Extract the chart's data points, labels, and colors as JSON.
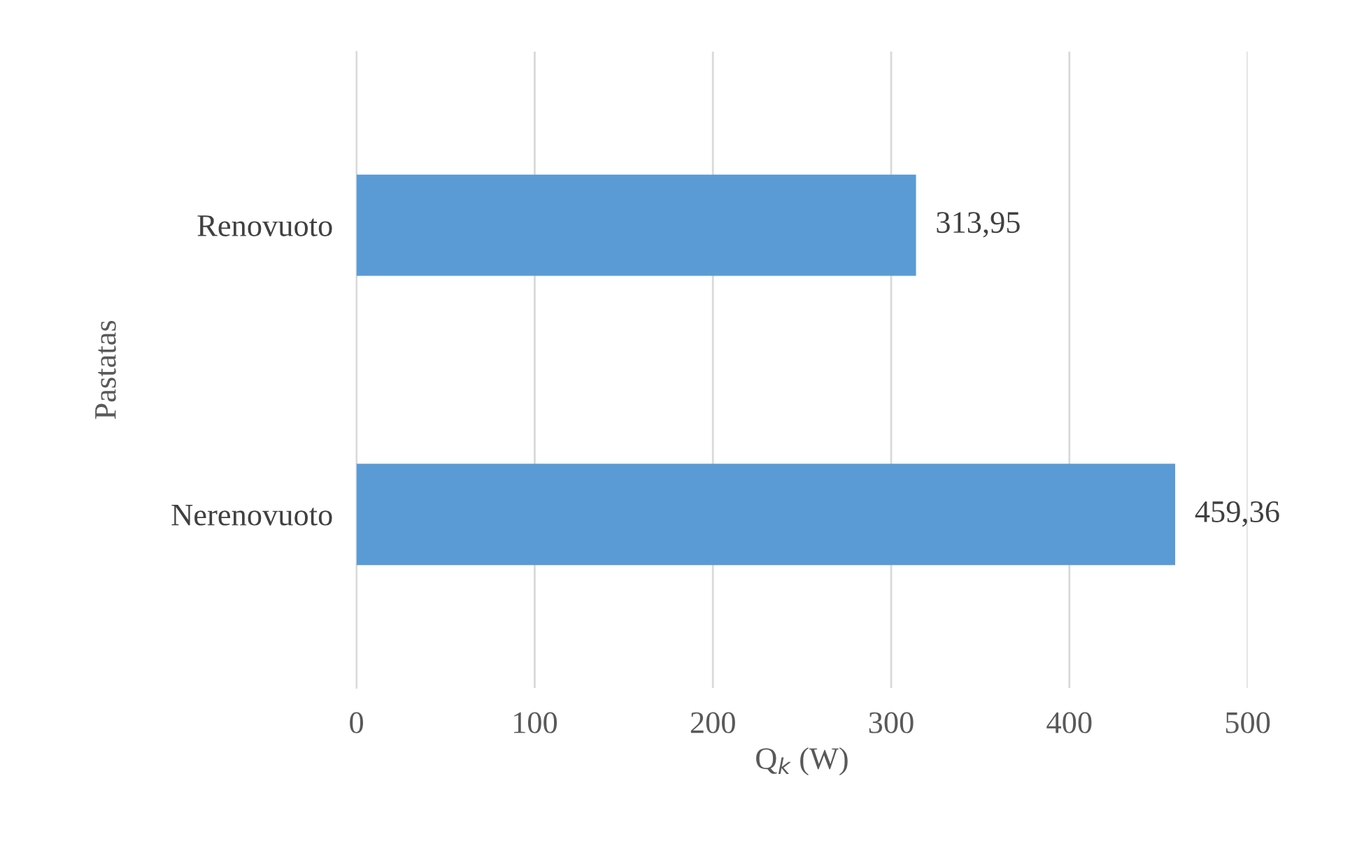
{
  "chart_data": {
    "type": "bar",
    "orientation": "horizontal",
    "categories": [
      "Renovuoto",
      "Nerenovuoto"
    ],
    "values": [
      313.95,
      459.36
    ],
    "value_labels": [
      "313,95",
      "459,36"
    ],
    "color": "#5b9bd5",
    "xlim": [
      0,
      500
    ],
    "xticks": [
      0,
      100,
      200,
      300,
      400,
      500
    ],
    "xlabel": "Q$_{k}$ (W)",
    "ylabel": "Pastatas",
    "grid": "x"
  }
}
